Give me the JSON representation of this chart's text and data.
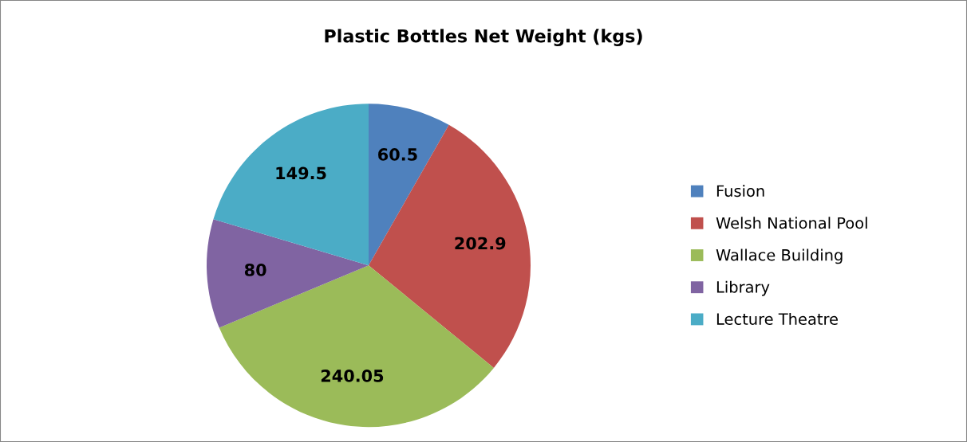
{
  "chart_data": {
    "type": "pie",
    "title": "Plastic Bottles Net Weight (kgs)",
    "categories": [
      "Fusion",
      "Welsh National Pool",
      "Wallace Building",
      "Library",
      "Lecture Theatre"
    ],
    "values": [
      60.5,
      202.9,
      240.05,
      80,
      149.5
    ],
    "colors": [
      "#4f81bd",
      "#c0504d",
      "#9bbb59",
      "#8064a2",
      "#4bacc6"
    ],
    "data_labels": true,
    "legend": "right"
  }
}
